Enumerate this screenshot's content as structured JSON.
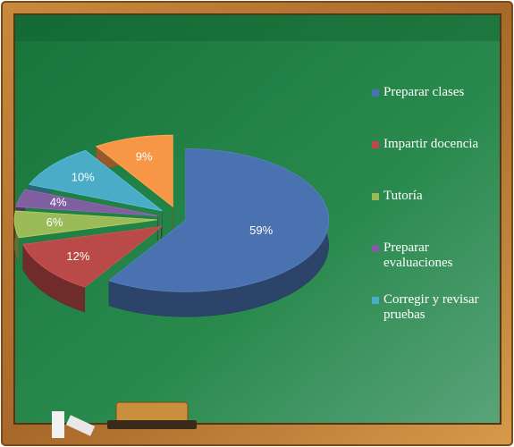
{
  "chart_data": {
    "type": "pie",
    "categories": [
      "Preparar clases",
      "Impartir docencia",
      "Tutoría",
      "Preparar evaluaciones",
      "Corregir y revisar pruebas",
      null
    ],
    "values": [
      59,
      12,
      6,
      4,
      10,
      9
    ],
    "value_labels": [
      "59%",
      "12%",
      "6%",
      "4%",
      "10%",
      "9%"
    ],
    "colors": [
      "#4a72b0",
      "#b94a48",
      "#9bbb59",
      "#7f5f9f",
      "#4aacc6",
      "#f79646"
    ],
    "legend": "right"
  }
}
